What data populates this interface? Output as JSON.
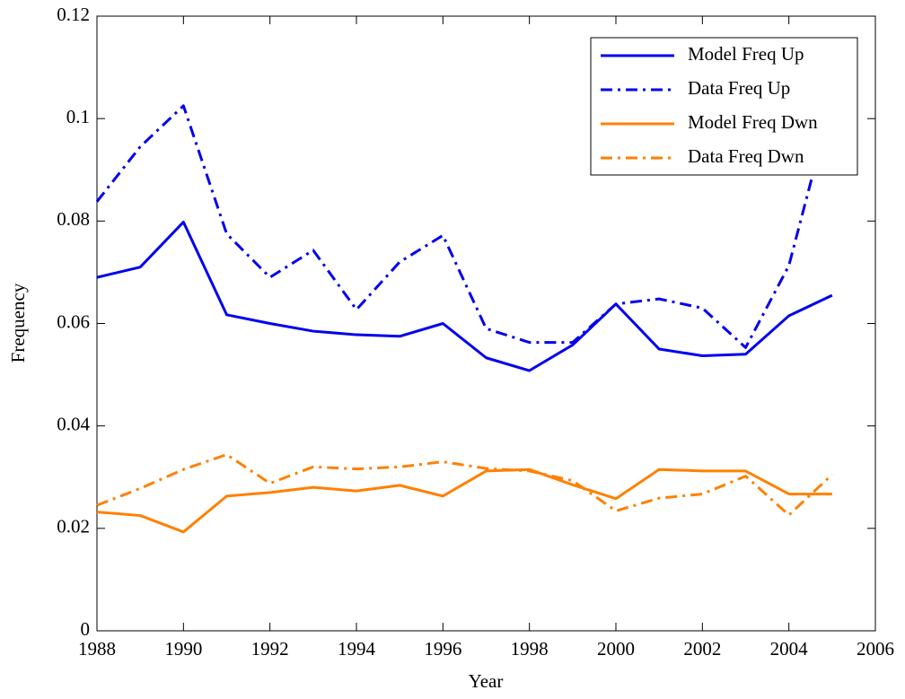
{
  "chart_data": {
    "type": "line",
    "x_label": "Year",
    "y_label": "Frequency",
    "x": [
      1988,
      1989,
      1990,
      1991,
      1992,
      1993,
      1994,
      1995,
      1996,
      1997,
      1998,
      1999,
      2000,
      2001,
      2002,
      2003,
      2004,
      2005
    ],
    "series": [
      {
        "name": "Model Freq Up",
        "color": "#0000ee",
        "linestyle": "solid",
        "values": [
          0.069,
          0.071,
          0.0798,
          0.0617,
          0.06,
          0.0585,
          0.0578,
          0.0575,
          0.06,
          0.0533,
          0.0508,
          0.0558,
          0.0638,
          0.055,
          0.0537,
          0.054,
          0.0615,
          0.0655
        ]
      },
      {
        "name": "Data Freq Up",
        "color": "#0000ee",
        "linestyle": "dashdot",
        "values": [
          0.0838,
          0.0945,
          0.1025,
          0.0775,
          0.069,
          0.0743,
          0.0627,
          0.072,
          0.0772,
          0.059,
          0.0563,
          0.0563,
          0.0638,
          0.0648,
          0.063,
          0.0553,
          0.0713,
          0.1035
        ]
      },
      {
        "name": "Model Freq Dwn",
        "color": "#ff8000",
        "linestyle": "solid",
        "values": [
          0.0232,
          0.0225,
          0.0193,
          0.0263,
          0.027,
          0.028,
          0.0273,
          0.0284,
          0.0263,
          0.0312,
          0.0315,
          0.0285,
          0.0258,
          0.0315,
          0.0312,
          0.0312,
          0.0267,
          0.0267
        ]
      },
      {
        "name": "Data Freq Dwn",
        "color": "#ff8000",
        "linestyle": "dashdot",
        "values": [
          0.0245,
          0.0278,
          0.0315,
          0.0344,
          0.0288,
          0.032,
          0.0316,
          0.032,
          0.033,
          0.0317,
          0.0312,
          0.0293,
          0.0234,
          0.0259,
          0.0267,
          0.0302,
          0.0226,
          0.0305
        ]
      }
    ],
    "xlim": [
      1988,
      2006
    ],
    "xticks": [
      1988,
      1990,
      1992,
      1994,
      1996,
      1998,
      2000,
      2002,
      2004,
      2006
    ],
    "ylim": [
      0,
      0.12
    ],
    "yticks": [
      0,
      0.02,
      0.04,
      0.06,
      0.08,
      0.1,
      0.12
    ],
    "grid": false,
    "legend": "upper right"
  }
}
